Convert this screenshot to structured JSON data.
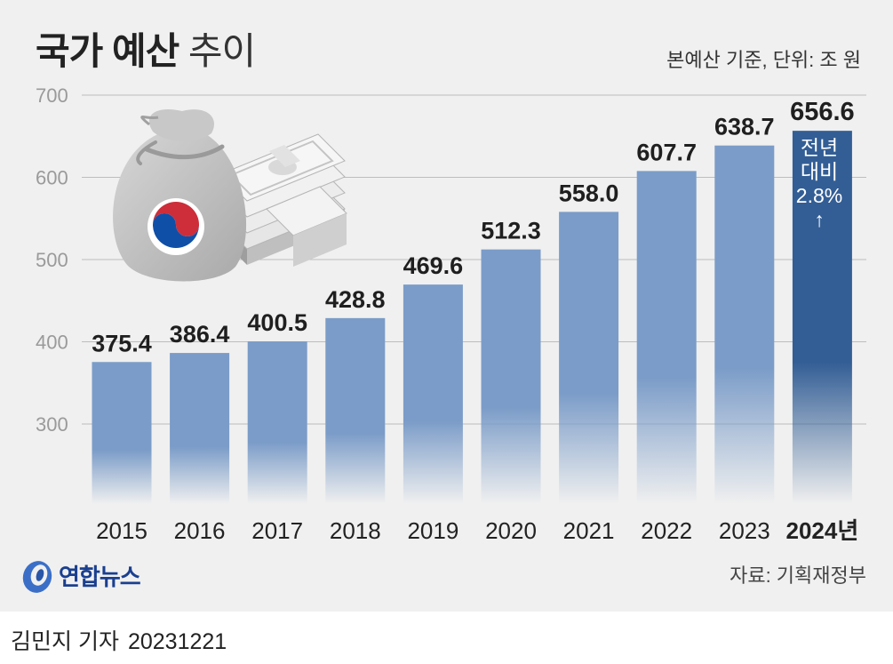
{
  "header": {
    "title_bold": "국가 예산",
    "title_light": "추이",
    "unit_note": "본예산 기준, 단위: 조 원"
  },
  "chart_data": {
    "type": "bar",
    "categories": [
      "2015",
      "2016",
      "2017",
      "2018",
      "2019",
      "2020",
      "2021",
      "2022",
      "2023",
      "2024년"
    ],
    "values": [
      375.4,
      386.4,
      400.5,
      428.8,
      469.6,
      512.3,
      558.0,
      607.7,
      638.7,
      656.6
    ],
    "value_labels": [
      "375.4",
      "386.4",
      "400.5",
      "428.8",
      "469.6",
      "512.3",
      "558.0",
      "607.7",
      "638.7",
      "656.6"
    ],
    "ylim": [
      300,
      700
    ],
    "yticks": [
      "300",
      "400",
      "500",
      "600",
      "700"
    ],
    "grid": true,
    "highlight_index": 9,
    "annotation": [
      "전년",
      "대비",
      "2.8%",
      "↑"
    ],
    "colors": {
      "bar": "#7b9cc8",
      "highlight": "#335e95",
      "grid": "#bdbdbd",
      "tick": "#9a9a9a"
    }
  },
  "footer": {
    "logo_text": "연합뉴스",
    "source": "자료: 기획재정부",
    "byline": "김민지 기자",
    "date": "20231221"
  },
  "illustration": {
    "icons": [
      "money-bag-icon",
      "taegeuk-emblem-icon",
      "banknote-stack-icon"
    ]
  }
}
